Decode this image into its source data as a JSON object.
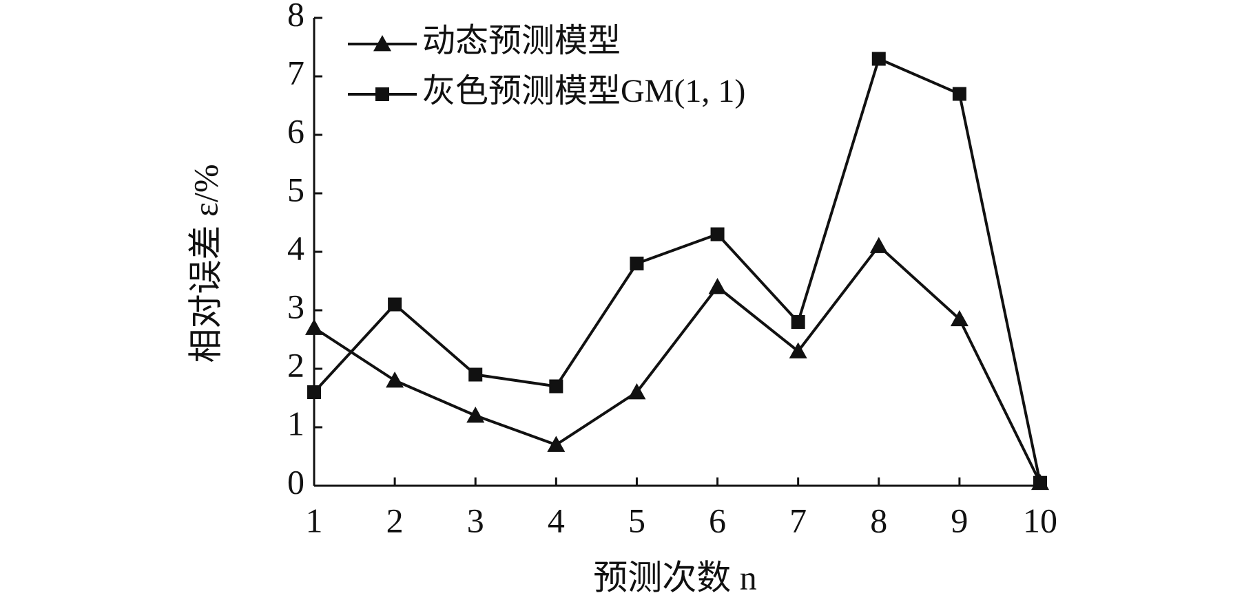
{
  "chart_data": {
    "type": "line",
    "x": [
      1,
      2,
      3,
      4,
      5,
      6,
      7,
      8,
      9,
      10
    ],
    "xlim": [
      1,
      10
    ],
    "xticks": [
      1,
      2,
      3,
      4,
      5,
      6,
      7,
      8,
      9,
      10
    ],
    "ylim": [
      0,
      8
    ],
    "yticks": [
      0,
      1,
      2,
      3,
      4,
      5,
      6,
      7,
      8
    ],
    "xlabel": "预测次数 n",
    "ylabel": "相对误差 ε/%",
    "grid": false,
    "legend": "upper left",
    "series": [
      {
        "name": "动态预测模型",
        "color": "#111111",
        "marker": "triangle",
        "values": [
          2.7,
          1.8,
          1.2,
          0.7,
          1.6,
          3.4,
          2.3,
          4.1,
          2.85,
          0.05
        ]
      },
      {
        "name": "灰色预测模型GM(1, 1)",
        "color": "#111111",
        "marker": "square",
        "values": [
          1.6,
          3.1,
          1.9,
          1.7,
          3.8,
          4.3,
          2.8,
          7.3,
          6.7,
          0.05
        ]
      }
    ]
  }
}
